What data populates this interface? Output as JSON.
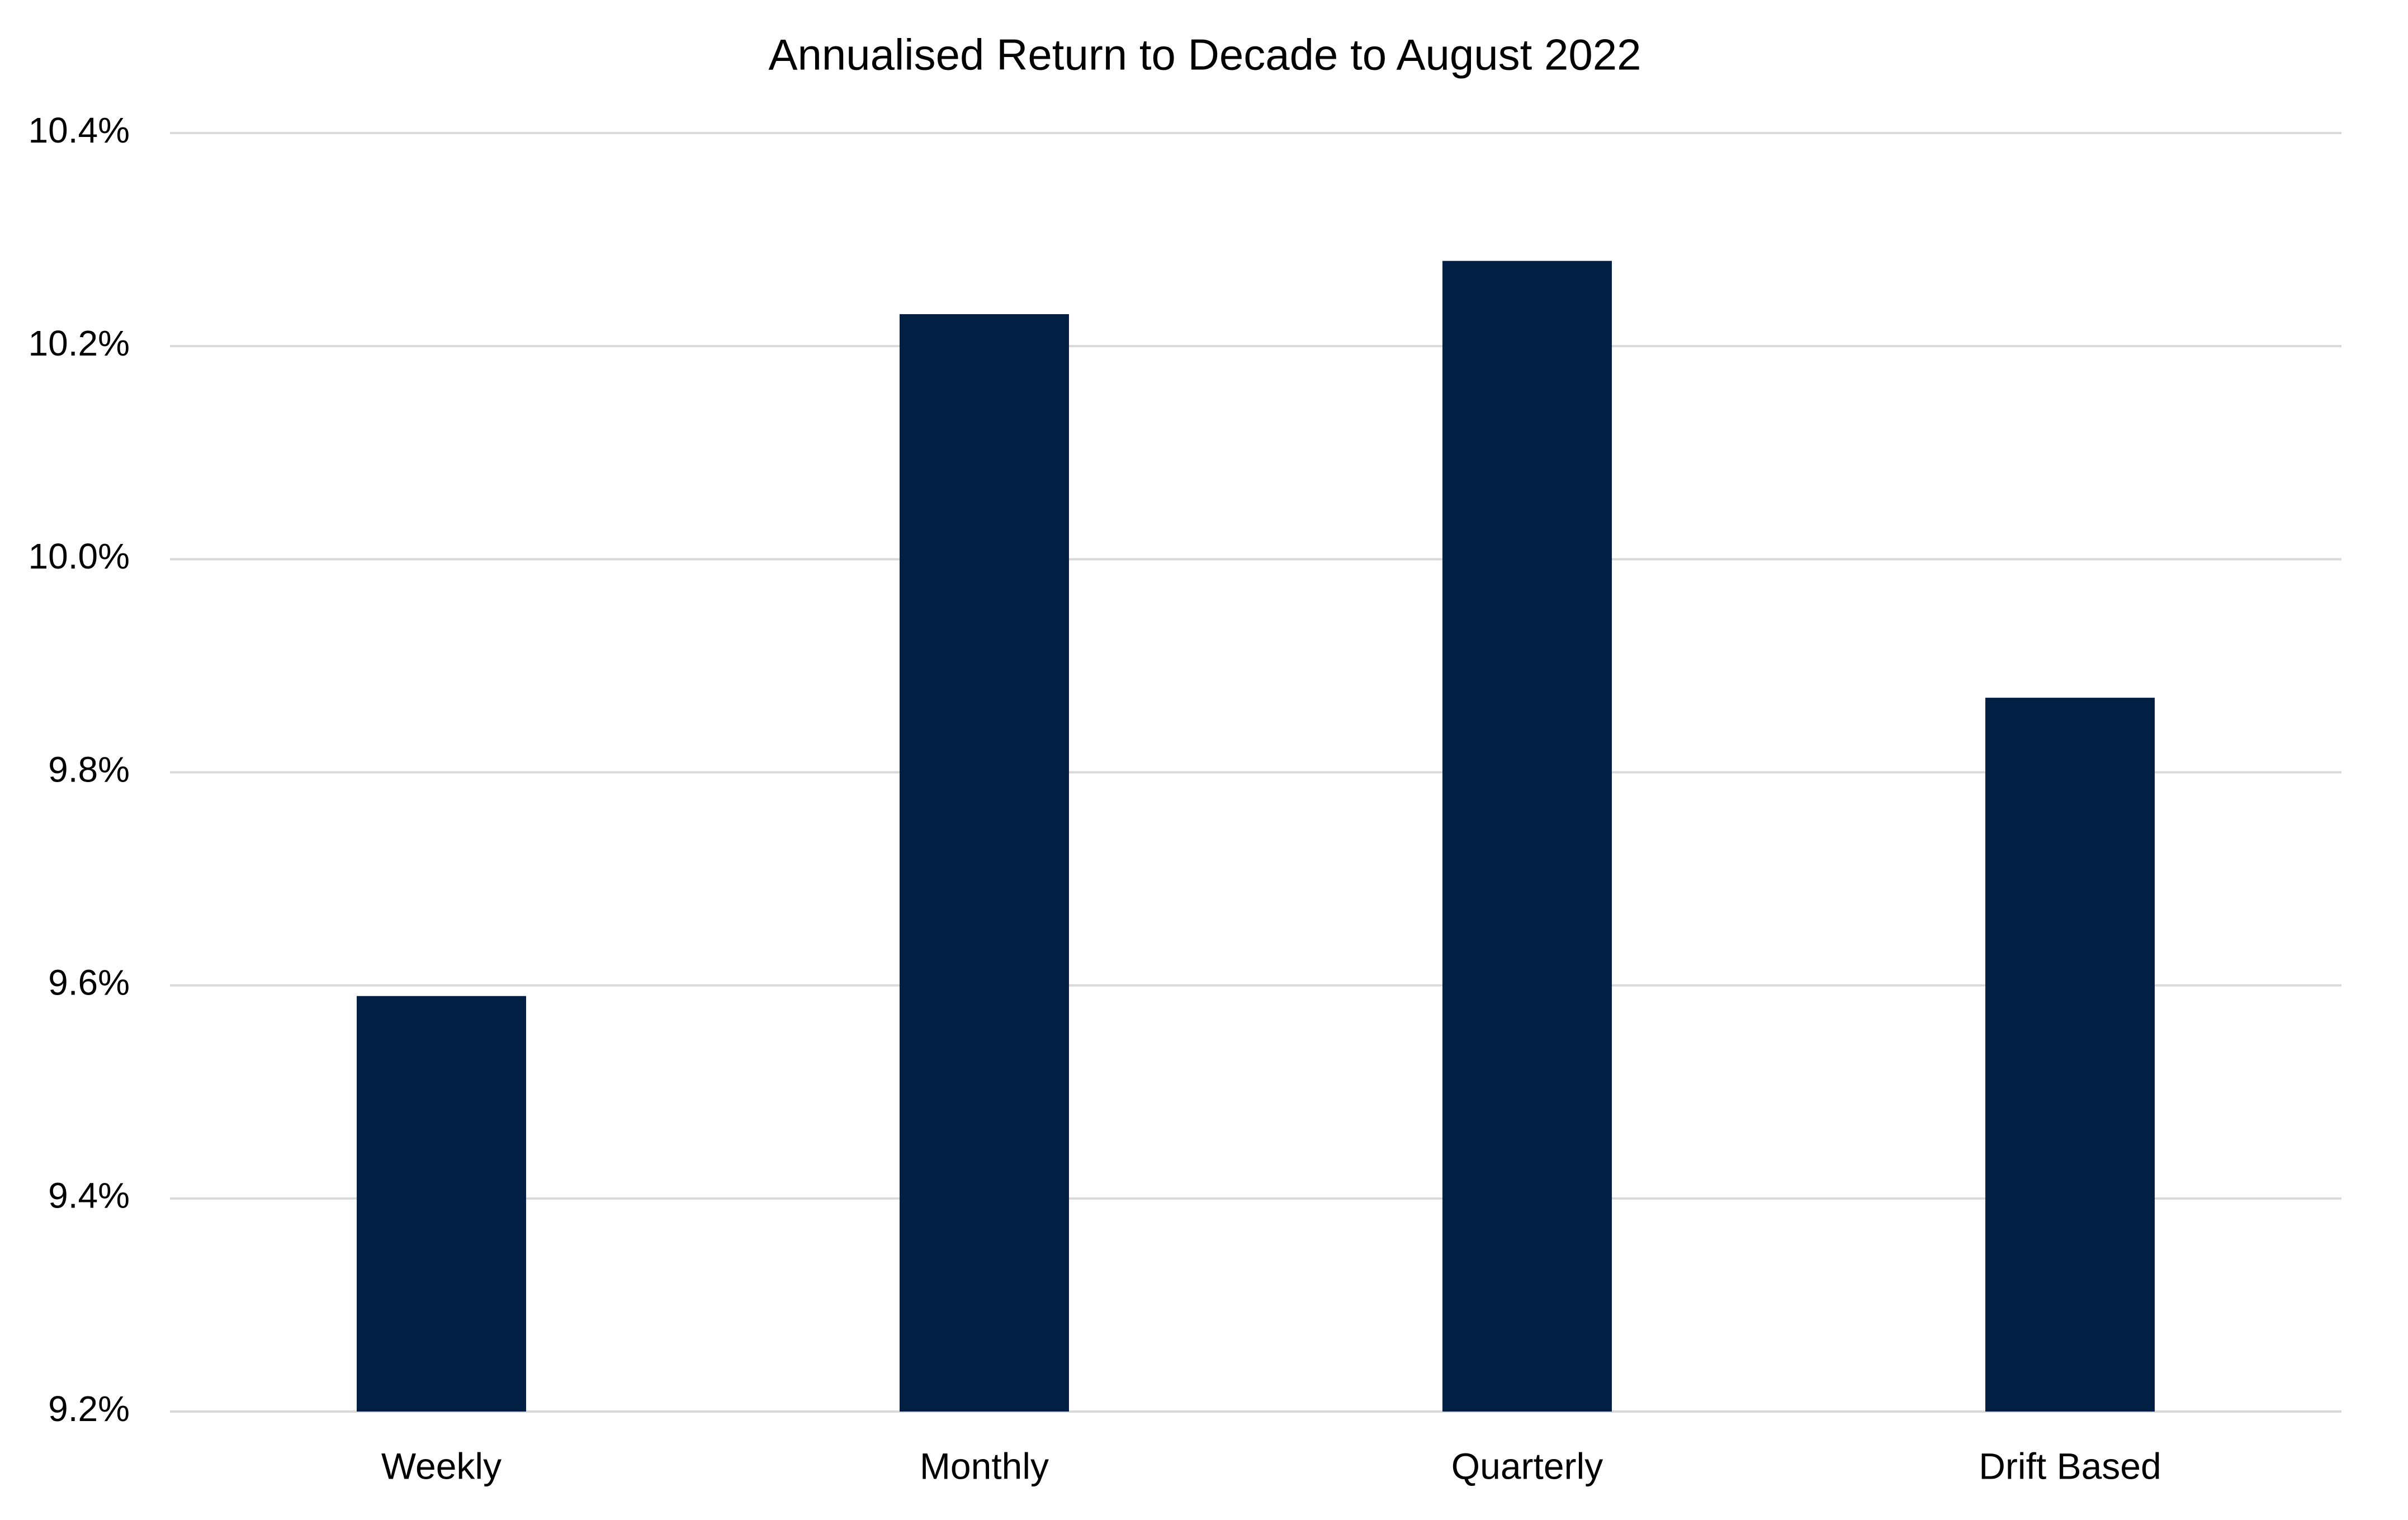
{
  "chart_data": {
    "type": "bar",
    "title": "Annualised Return to Decade to August 2022",
    "categories": [
      "Weekly",
      "Monthly",
      "Quarterly",
      "Drift Based"
    ],
    "values": [
      9.59,
      10.23,
      10.28,
      9.87
    ],
    "color": "#001f42",
    "ylim": [
      9.2,
      10.4
    ],
    "yticks": [
      {
        "value": 9.2,
        "label": "9.2%"
      },
      {
        "value": 9.4,
        "label": "9.4%"
      },
      {
        "value": 9.6,
        "label": "9.6%"
      },
      {
        "value": 9.8,
        "label": "9.8%"
      },
      {
        "value": 10.0,
        "label": "10.0%"
      },
      {
        "value": 10.2,
        "label": "10.2%"
      },
      {
        "value": 10.4,
        "label": "10.4%"
      }
    ],
    "grid": true
  }
}
